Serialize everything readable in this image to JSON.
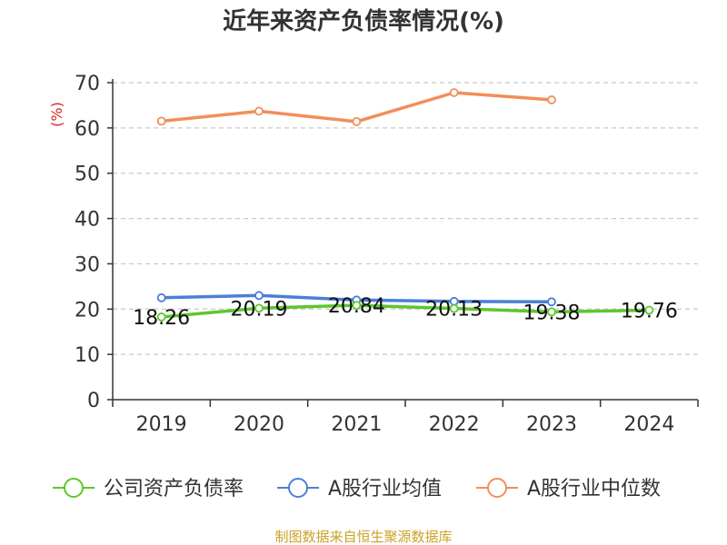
{
  "chart_data": {
    "type": "line",
    "title": "近年来资产负债率情况(%)",
    "ylabel": "(%)",
    "categories": [
      "2019",
      "2020",
      "2021",
      "2022",
      "2023",
      "2024"
    ],
    "ylim": [
      0,
      70
    ],
    "yticks": [
      "0",
      "10",
      "20",
      "30",
      "40",
      "50",
      "60",
      "70"
    ],
    "grid": true,
    "legend_position": "bottom",
    "series": [
      {
        "name": "公司资产负债率",
        "color": "#5cc72c",
        "values": [
          18.26,
          20.19,
          20.84,
          20.13,
          19.38,
          19.76
        ],
        "labels": [
          "18.26",
          "20.19",
          "20.84",
          "20.13",
          "19.38",
          "19.76"
        ]
      },
      {
        "name": "A股行业均值",
        "color": "#4a7fd8",
        "values": [
          22.5,
          23.0,
          22.0,
          21.7,
          21.6,
          null
        ]
      },
      {
        "name": "A股行业中位数",
        "color": "#f28e5a",
        "values": [
          61.5,
          63.7,
          61.4,
          67.8,
          66.2,
          null
        ]
      }
    ]
  },
  "source": "制图数据来自恒生聚源数据库"
}
